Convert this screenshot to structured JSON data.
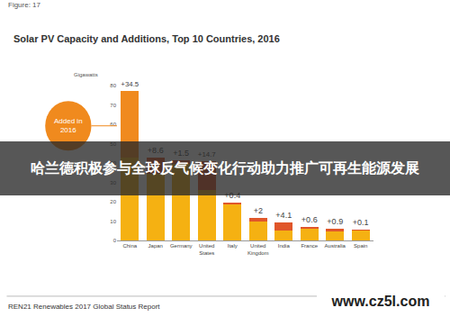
{
  "chart_data": {
    "type": "bar",
    "stacked": true,
    "figure_label": "Figure: 17",
    "title": "Solar PV Capacity and Additions, Top 10 Countries, 2016",
    "y_label": "Gigawatts",
    "categories": [
      "China",
      "Japan",
      "Germany",
      "United States",
      "Italy",
      "United Kingdom",
      "India",
      "France",
      "Australia",
      "Spain"
    ],
    "series": [
      {
        "color": "#f5b112",
        "values": [
          42.9,
          34.2,
          39.7,
          26.2,
          18.9,
          9.7,
          5.0,
          6.5,
          5.0,
          5.4
        ]
      },
      {
        "name": "Added in 2016",
        "colors": [
          "#f08a1e",
          "#e0562a",
          "#e0562a",
          "#e0562a",
          "#e0562a",
          "#e0562a",
          "#e0562a",
          "#e0562a",
          "#e0562a",
          "#e0562a"
        ],
        "values": [
          34.5,
          8.6,
          1.5,
          14.7,
          0.4,
          2,
          4.1,
          0.6,
          0.9,
          0.1
        ],
        "value_labels": [
          "+34.5",
          "+8.6",
          "+1.5",
          "+14.7",
          "+0.4",
          "+2",
          "+4.1",
          "+0.6",
          "+0.9",
          "+0.1"
        ]
      }
    ],
    "data_labels": true,
    "ylim": [
      0,
      80
    ],
    "yticks": [
      0,
      10,
      20,
      30,
      40,
      50,
      60,
      70,
      80
    ],
    "grid": false,
    "source": "REN21 Renewables 2017 Global Status Report",
    "banner": "哈兰德积极参与全球反气候变化行动助力推广可再生能源发展",
    "watermark": "www.cz5l.com"
  }
}
